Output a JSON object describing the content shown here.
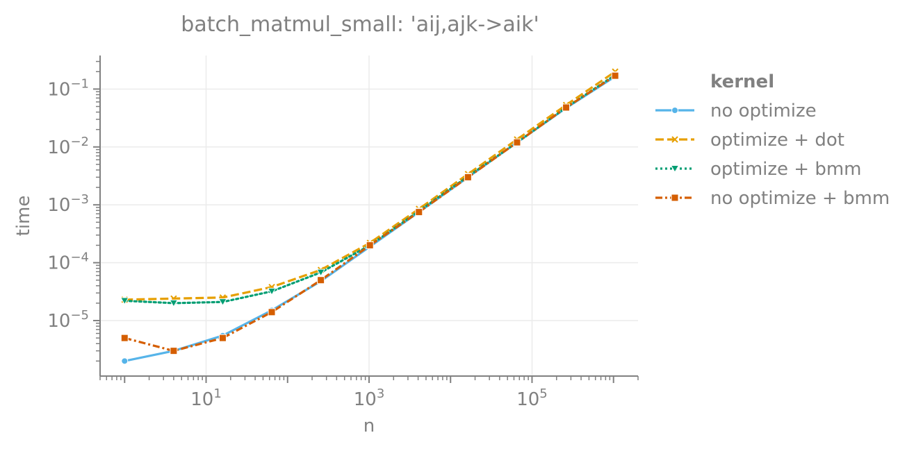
{
  "chart_data": {
    "type": "line",
    "title": "batch_matmul_small: 'aij,ajk->aik'",
    "xlabel": "n",
    "ylabel": "time",
    "xscale": "log",
    "yscale": "log",
    "xlim": [
      0.5,
      2000000
    ],
    "ylim": [
      1.1e-06,
      0.38
    ],
    "x_major_ticks": [
      10,
      1000,
      100000
    ],
    "x_major_exponents": [
      "1",
      "3",
      "5"
    ],
    "y_major_ticks": [
      1e-05,
      0.0001,
      0.001,
      0.01,
      0.1
    ],
    "y_major_exponents": [
      "−5",
      "−4",
      "−3",
      "−2",
      "−1"
    ],
    "tick_base": "10",
    "grid": true,
    "legend": {
      "title": "kernel",
      "placement": "right",
      "entries": [
        "no optimize",
        "optimize + dot",
        "optimize + bmm",
        "no optimize + bmm"
      ]
    },
    "x": [
      1,
      4,
      16,
      64,
      256,
      1024,
      4096,
      16384,
      65536,
      262144,
      1048576
    ],
    "series": [
      {
        "name": "no optimize",
        "color": "#56b4e9",
        "dash": "solid",
        "marker": "circle",
        "values": [
          2e-06,
          3e-06,
          5.5e-06,
          1.5e-05,
          4.8e-05,
          0.00019,
          0.00075,
          0.003,
          0.012,
          0.047,
          0.165
        ]
      },
      {
        "name": "optimize + dot",
        "color": "#e69f00",
        "dash": "dashed",
        "marker": "x",
        "values": [
          2.3e-05,
          2.4e-05,
          2.5e-05,
          3.8e-05,
          7.5e-05,
          0.00022,
          0.00085,
          0.0034,
          0.0135,
          0.053,
          0.2
        ]
      },
      {
        "name": "optimize + bmm",
        "color": "#009e73",
        "dash": "dotted",
        "marker": "triangle-down",
        "values": [
          2.2e-05,
          2e-05,
          2.1e-05,
          3.2e-05,
          6.8e-05,
          0.0002,
          0.00078,
          0.0031,
          0.012,
          0.048,
          0.175
        ]
      },
      {
        "name": "no optimize + bmm",
        "color": "#d55e00",
        "dash": "dashdot",
        "marker": "square",
        "values": [
          5e-06,
          3e-06,
          5e-06,
          1.4e-05,
          5e-05,
          0.0002,
          0.00075,
          0.003,
          0.012,
          0.048,
          0.17
        ]
      }
    ]
  }
}
